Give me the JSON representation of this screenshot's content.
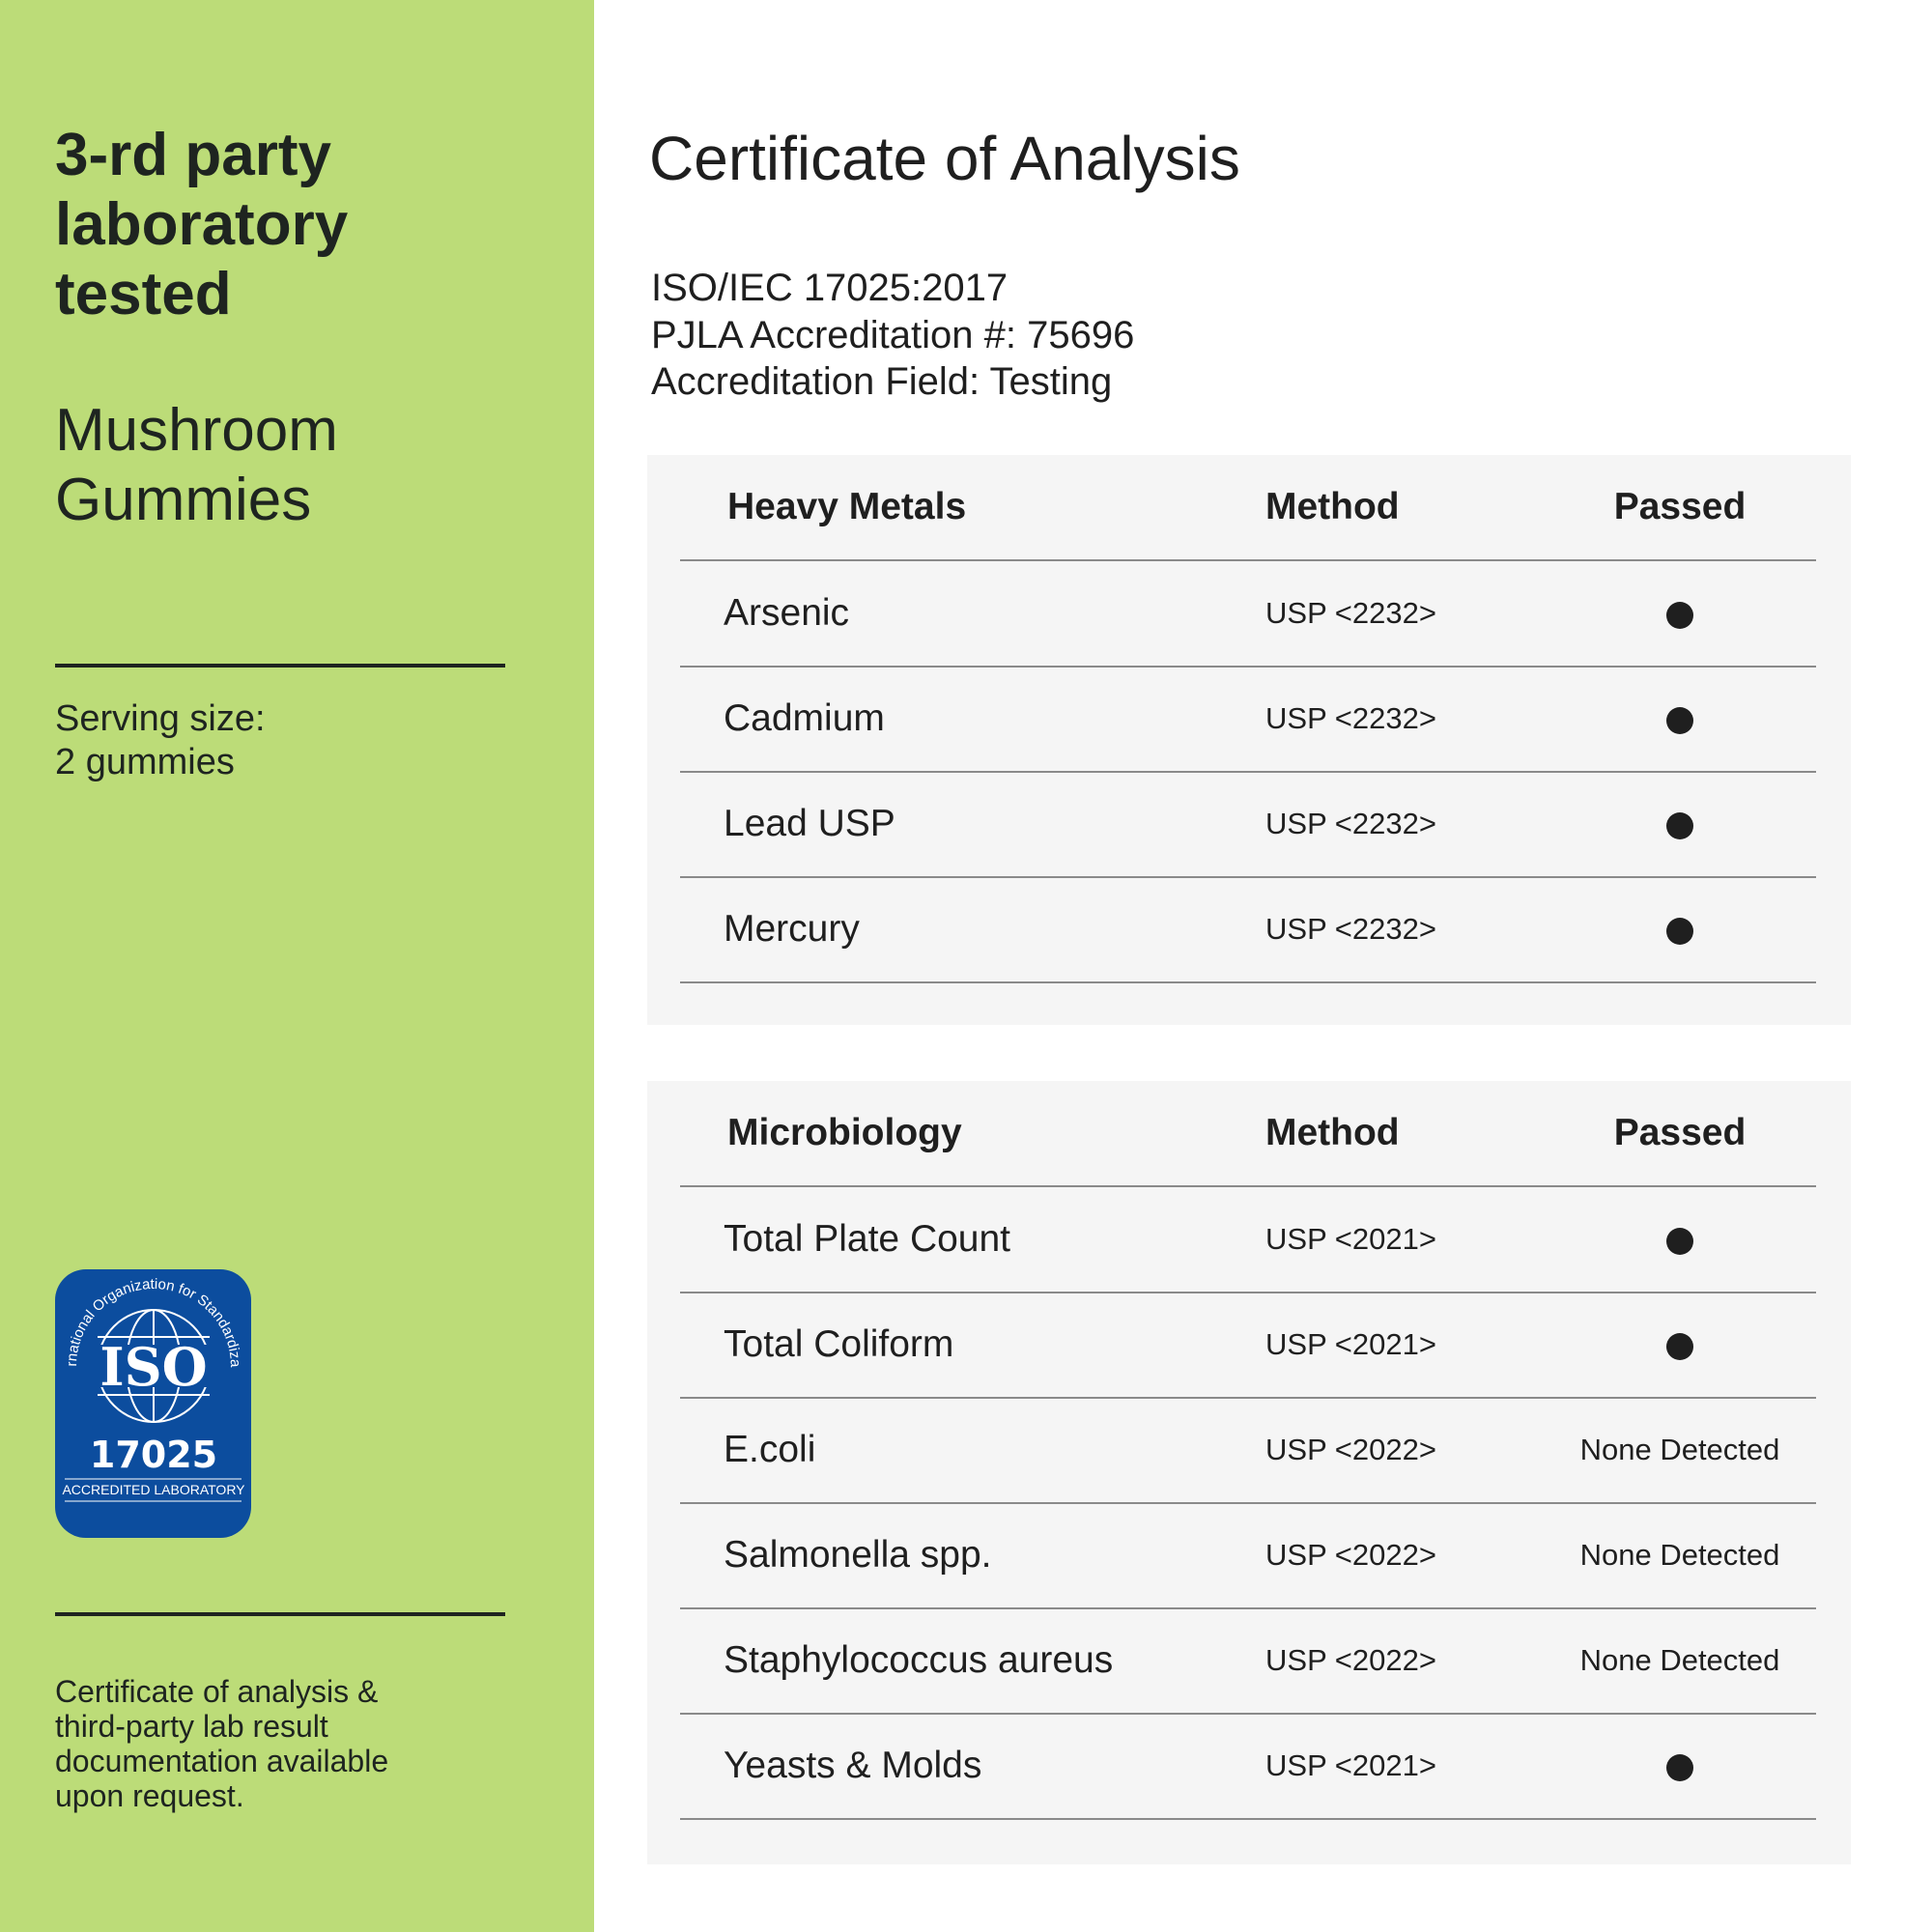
{
  "left": {
    "heading": [
      "3-rd party",
      "laboratory",
      "tested"
    ],
    "product": [
      "Mushroom",
      "Gummies"
    ],
    "serving": [
      "Serving size:",
      "2 gummies"
    ],
    "badge": {
      "arc_text": "International Organization for Standardization",
      "logo": "ISO",
      "number": "17025",
      "caption": "ACCREDITED LABORATORY",
      "color": "#0c4d9e"
    },
    "footer": [
      "Certificate of analysis &",
      "third-party lab result",
      "documentation available",
      "upon request."
    ],
    "background": "#bcdc78"
  },
  "main": {
    "title": "Certificate of Analysis",
    "accreditation": [
      "ISO/IEC 17025:2017",
      "PJLA Accreditation #: 75696",
      "Accreditation Field: Testing"
    ],
    "tables": [
      {
        "headers": [
          "Heavy Metals",
          "Method",
          "Passed"
        ],
        "rows": [
          {
            "name": "Arsenic",
            "method": "USP <2232>",
            "passed": "dot"
          },
          {
            "name": "Cadmium",
            "method": "USP <2232>",
            "passed": "dot"
          },
          {
            "name": "Lead USP",
            "method": "USP <2232>",
            "passed": "dot"
          },
          {
            "name": "Mercury",
            "method": "USP <2232>",
            "passed": "dot"
          }
        ]
      },
      {
        "headers": [
          "Microbiology",
          "Method",
          "Passed"
        ],
        "rows": [
          {
            "name": "Total Plate Count",
            "method": "USP <2021>",
            "passed": "dot"
          },
          {
            "name": "Total Coliform",
            "method": "USP <2021>",
            "passed": "dot"
          },
          {
            "name": "E.coli",
            "method": "USP <2022>",
            "passed": "None Detected"
          },
          {
            "name": "Salmonella spp.",
            "method": "USP <2022>",
            "passed": "None Detected"
          },
          {
            "name": "Staphylococcus aureus",
            "method": "USP <2022>",
            "passed": "None Detected"
          },
          {
            "name": "Yeasts & Molds",
            "method": "USP <2021>",
            "passed": "dot"
          }
        ]
      }
    ]
  }
}
